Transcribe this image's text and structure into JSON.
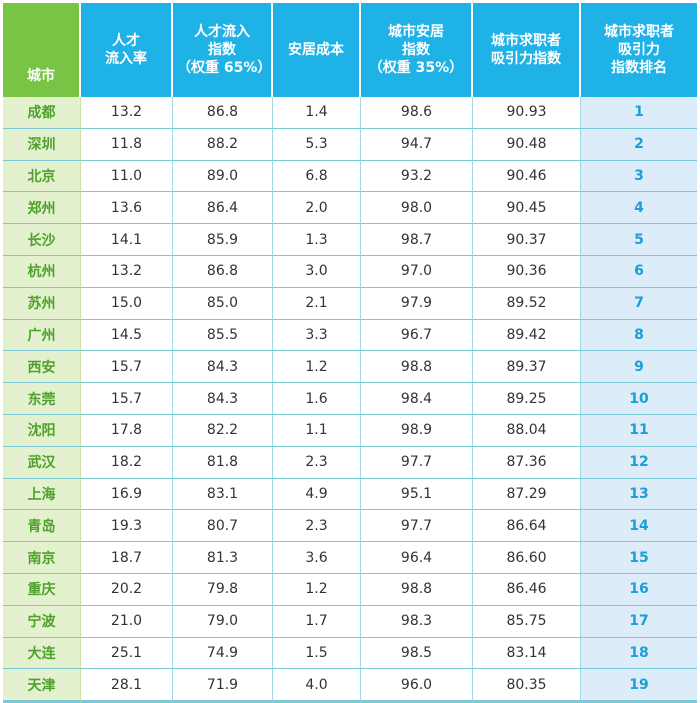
{
  "chart_data": {
    "type": "table",
    "columns": [
      {
        "key": "city",
        "lines": [
          "城市"
        ]
      },
      {
        "key": "talent_inflow_rate",
        "lines": [
          "人才",
          "流入率"
        ]
      },
      {
        "key": "talent_inflow_index",
        "lines": [
          "人才流入",
          "指数",
          "（权重 65%）"
        ]
      },
      {
        "key": "settling_cost",
        "lines": [
          "安居成本"
        ]
      },
      {
        "key": "settling_index",
        "lines": [
          "城市安居",
          "指数",
          "（权重 35%）"
        ]
      },
      {
        "key": "attraction_index",
        "lines": [
          "城市求职者",
          "吸引力指数"
        ]
      },
      {
        "key": "rank",
        "lines": [
          "城市求职者",
          "吸引力",
          "指数排名"
        ]
      }
    ],
    "rows": [
      [
        "成都",
        "13.2",
        "86.8",
        "1.4",
        "98.6",
        "90.93",
        "1"
      ],
      [
        "深圳",
        "11.8",
        "88.2",
        "5.3",
        "94.7",
        "90.48",
        "2"
      ],
      [
        "北京",
        "11.0",
        "89.0",
        "6.8",
        "93.2",
        "90.46",
        "3"
      ],
      [
        "郑州",
        "13.6",
        "86.4",
        "2.0",
        "98.0",
        "90.45",
        "4"
      ],
      [
        "长沙",
        "14.1",
        "85.9",
        "1.3",
        "98.7",
        "90.37",
        "5"
      ],
      [
        "杭州",
        "13.2",
        "86.8",
        "3.0",
        "97.0",
        "90.36",
        "6"
      ],
      [
        "苏州",
        "15.0",
        "85.0",
        "2.1",
        "97.9",
        "89.52",
        "7"
      ],
      [
        "广州",
        "14.5",
        "85.5",
        "3.3",
        "96.7",
        "89.42",
        "8"
      ],
      [
        "西安",
        "15.7",
        "84.3",
        "1.2",
        "98.8",
        "89.37",
        "9"
      ],
      [
        "东莞",
        "15.7",
        "84.3",
        "1.6",
        "98.4",
        "89.25",
        "10"
      ],
      [
        "沈阳",
        "17.8",
        "82.2",
        "1.1",
        "98.9",
        "88.04",
        "11"
      ],
      [
        "武汉",
        "18.2",
        "81.8",
        "2.3",
        "97.7",
        "87.36",
        "12"
      ],
      [
        "上海",
        "16.9",
        "83.1",
        "4.9",
        "95.1",
        "87.29",
        "13"
      ],
      [
        "青岛",
        "19.3",
        "80.7",
        "2.3",
        "97.7",
        "86.64",
        "14"
      ],
      [
        "南京",
        "18.7",
        "81.3",
        "3.6",
        "96.4",
        "86.60",
        "15"
      ],
      [
        "重庆",
        "20.2",
        "79.8",
        "1.2",
        "98.8",
        "86.46",
        "16"
      ],
      [
        "宁波",
        "21.0",
        "79.0",
        "1.7",
        "98.3",
        "85.75",
        "17"
      ],
      [
        "大连",
        "25.1",
        "74.9",
        "1.5",
        "98.5",
        "83.14",
        "18"
      ],
      [
        "天津",
        "28.1",
        "71.9",
        "4.0",
        "96.0",
        "80.35",
        "19"
      ]
    ]
  },
  "colors": {
    "header_blue": "#1fb2e6",
    "header_green": "#78c545",
    "city_cell_bg": "#e3f1cf",
    "city_text": "#4ea12a",
    "rank_cell_bg": "#dcecf8",
    "rank_text": "#1a9fd6"
  }
}
